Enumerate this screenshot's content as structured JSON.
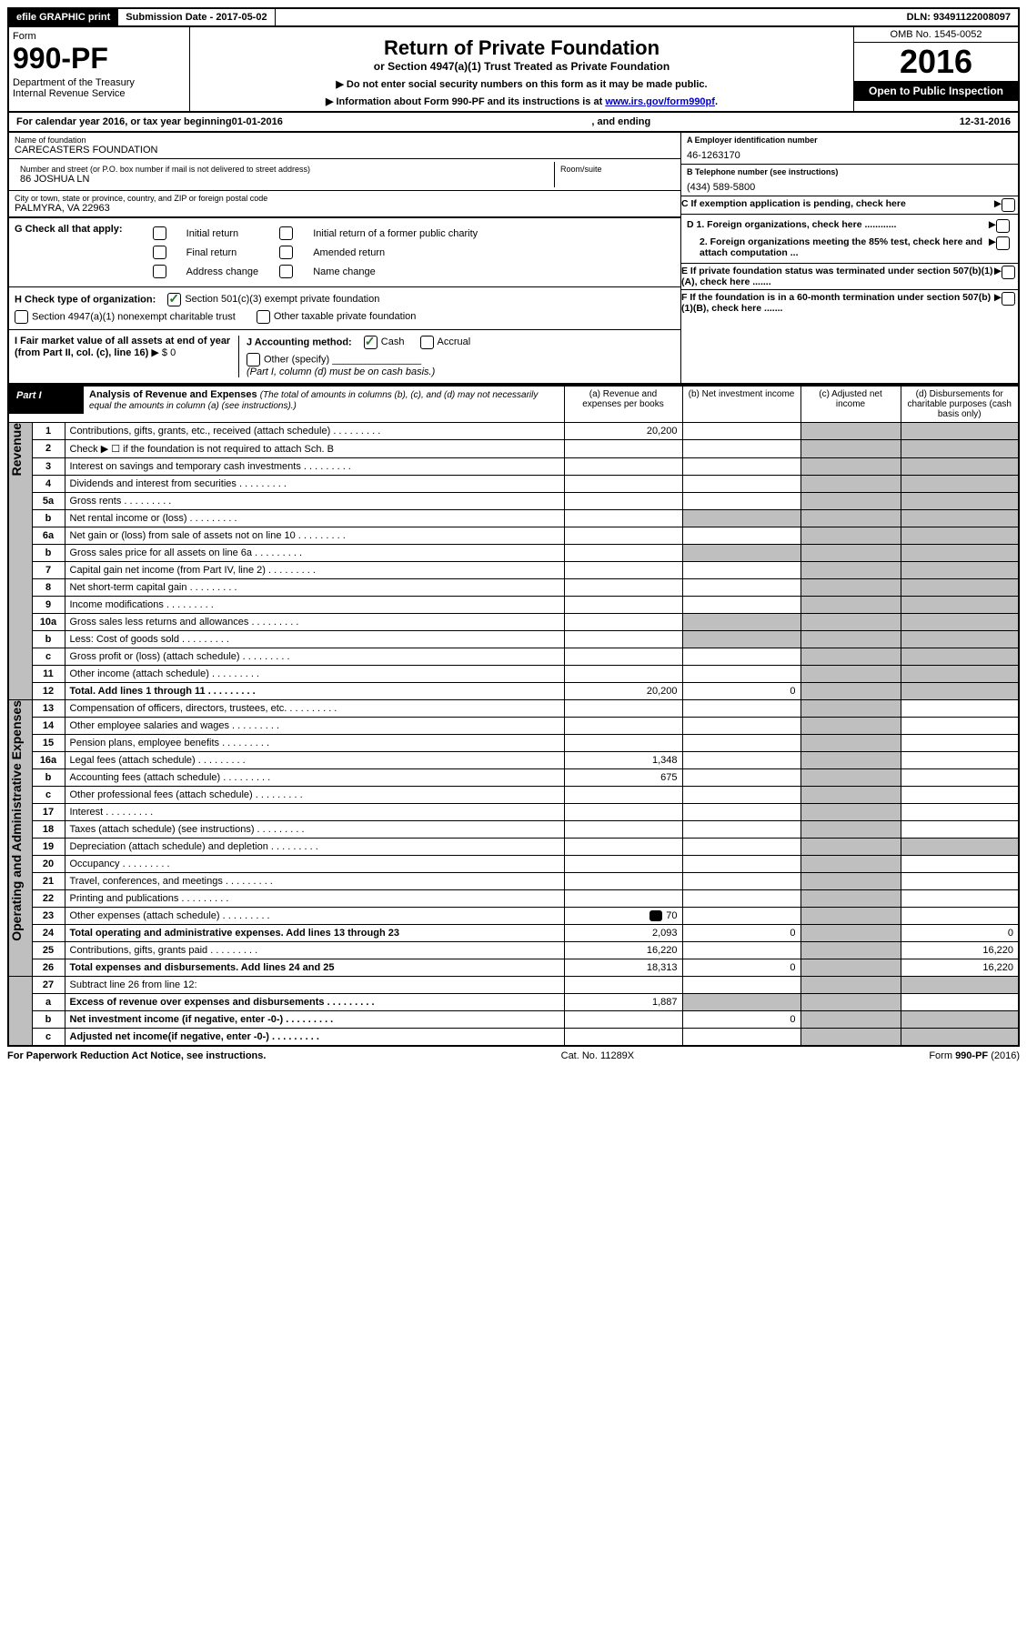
{
  "top": {
    "efile": "efile GRAPHIC print",
    "submission": "Submission Date - 2017-05-02",
    "dln": "DLN: 93491122008097"
  },
  "header": {
    "form_word": "Form",
    "form_no": "990-PF",
    "dept": "Department of the Treasury",
    "irs": "Internal Revenue Service",
    "title": "Return of Private Foundation",
    "subtitle": "or Section 4947(a)(1) Trust Treated as Private Foundation",
    "instr1": "▶ Do not enter social security numbers on this form as it may be made public.",
    "instr2_pre": "▶ Information about Form 990-PF and its instructions is at ",
    "instr2_link": "www.irs.gov/form990pf",
    "omb": "OMB No. 1545-0052",
    "year": "2016",
    "open": "Open to Public Inspection"
  },
  "calyear": {
    "pre": "For calendar year 2016, or tax year beginning ",
    "begin": "01-01-2016",
    "mid": " , and ending ",
    "end": "12-31-2016"
  },
  "info": {
    "name_lbl": "Name of foundation",
    "name": "CARECASTERS FOUNDATION",
    "addr_lbl": "Number and street (or P.O. box number if mail is not delivered to street address)",
    "addr": "86 JOSHUA LN",
    "room_lbl": "Room/suite",
    "city_lbl": "City or town, state or province, country, and ZIP or foreign postal code",
    "city": "PALMYRA, VA  22963",
    "A_lbl": "A Employer identification number",
    "A_val": "46-1263170",
    "B_lbl": "B Telephone number (see instructions)",
    "B_val": "(434) 589-5800",
    "C_lbl": "C If exemption application is pending, check here",
    "D1": "D 1. Foreign organizations, check here ............",
    "D2": "2. Foreign organizations meeting the 85% test, check here and attach computation ...",
    "E": "E  If private foundation status was terminated under section 507(b)(1)(A), check here .......",
    "F": "F  If the foundation is in a 60-month termination under section 507(b)(1)(B), check here ......."
  },
  "G": {
    "label": "G Check all that apply:",
    "opts": [
      "Initial return",
      "Final return",
      "Address change",
      "Initial return of a former public charity",
      "Amended return",
      "Name change"
    ]
  },
  "H": {
    "label": "H Check type of organization:",
    "o1": "Section 501(c)(3) exempt private foundation",
    "o2": "Section 4947(a)(1) nonexempt charitable trust",
    "o3": "Other taxable private foundation"
  },
  "I": {
    "label": "I Fair market value of all assets at end of year (from Part II, col. (c), line 16)",
    "val": "▶ $  0",
    "J_label": "J Accounting method:",
    "J_cash": "Cash",
    "J_accrual": "Accrual",
    "J_other": "Other (specify)",
    "J_note": "(Part I, column (d) must be on cash basis.)"
  },
  "part1": {
    "hdr": "Part I",
    "title": "Analysis of Revenue and Expenses",
    "title_note": "(The total of amounts in columns (b), (c), and (d) may not necessarily equal the amounts in column (a) (see instructions).)",
    "col_a": "(a)  Revenue and expenses per books",
    "col_b": "(b)  Net investment income",
    "col_c": "(c)  Adjusted net income",
    "col_d": "(d)  Disbursements for charitable purposes (cash basis only)",
    "revenue_lbl": "Revenue",
    "expenses_lbl": "Operating and Administrative Expenses",
    "rows": {
      "1": {
        "n": "1",
        "t": "Contributions, gifts, grants, etc., received (attach schedule)",
        "a": "20,200"
      },
      "2": {
        "n": "2",
        "t": "Check ▶ ☐ if the foundation is not required to attach Sch. B"
      },
      "3": {
        "n": "3",
        "t": "Interest on savings and temporary cash investments"
      },
      "4": {
        "n": "4",
        "t": "Dividends and interest from securities"
      },
      "5a": {
        "n": "5a",
        "t": "Gross rents"
      },
      "5b": {
        "n": "b",
        "t": "Net rental income or (loss)"
      },
      "6a": {
        "n": "6a",
        "t": "Net gain or (loss) from sale of assets not on line 10"
      },
      "6b": {
        "n": "b",
        "t": "Gross sales price for all assets on line 6a"
      },
      "7": {
        "n": "7",
        "t": "Capital gain net income (from Part IV, line 2)"
      },
      "8": {
        "n": "8",
        "t": "Net short-term capital gain"
      },
      "9": {
        "n": "9",
        "t": "Income modifications"
      },
      "10a": {
        "n": "10a",
        "t": "Gross sales less returns and allowances"
      },
      "10b": {
        "n": "b",
        "t": "Less: Cost of goods sold"
      },
      "10c": {
        "n": "c",
        "t": "Gross profit or (loss) (attach schedule)"
      },
      "11": {
        "n": "11",
        "t": "Other income (attach schedule)"
      },
      "12": {
        "n": "12",
        "t": "Total. Add lines 1 through 11",
        "a": "20,200",
        "b": "0"
      },
      "13": {
        "n": "13",
        "t": "Compensation of officers, directors, trustees, etc."
      },
      "14": {
        "n": "14",
        "t": "Other employee salaries and wages"
      },
      "15": {
        "n": "15",
        "t": "Pension plans, employee benefits"
      },
      "16a": {
        "n": "16a",
        "t": "Legal fees (attach schedule)",
        "a": "1,348"
      },
      "16b": {
        "n": "b",
        "t": "Accounting fees (attach schedule)",
        "a": "675"
      },
      "16c": {
        "n": "c",
        "t": "Other professional fees (attach schedule)"
      },
      "17": {
        "n": "17",
        "t": "Interest"
      },
      "18": {
        "n": "18",
        "t": "Taxes (attach schedule) (see instructions)"
      },
      "19": {
        "n": "19",
        "t": "Depreciation (attach schedule) and depletion"
      },
      "20": {
        "n": "20",
        "t": "Occupancy"
      },
      "21": {
        "n": "21",
        "t": "Travel, conferences, and meetings"
      },
      "22": {
        "n": "22",
        "t": "Printing and publications"
      },
      "23": {
        "n": "23",
        "t": "Other expenses (attach schedule)",
        "a": "70",
        "attach": true
      },
      "24": {
        "n": "24",
        "t": "Total operating and administrative expenses. Add lines 13 through 23",
        "a": "2,093",
        "b": "0",
        "d": "0"
      },
      "25": {
        "n": "25",
        "t": "Contributions, gifts, grants paid",
        "a": "16,220",
        "d": "16,220"
      },
      "26": {
        "n": "26",
        "t": "Total expenses and disbursements. Add lines 24 and 25",
        "a": "18,313",
        "b": "0",
        "d": "16,220"
      },
      "27": {
        "n": "27",
        "t": "Subtract line 26 from line 12:"
      },
      "27a": {
        "n": "a",
        "t": "Excess of revenue over expenses and disbursements",
        "a": "1,887"
      },
      "27b": {
        "n": "b",
        "t": "Net investment income (if negative, enter -0-)",
        "b": "0"
      },
      "27c": {
        "n": "c",
        "t": "Adjusted net income(if negative, enter -0-)"
      }
    }
  },
  "footer": {
    "left": "For Paperwork Reduction Act Notice, see instructions.",
    "mid": "Cat. No. 11289X",
    "right": "Form 990-PF (2016)"
  }
}
